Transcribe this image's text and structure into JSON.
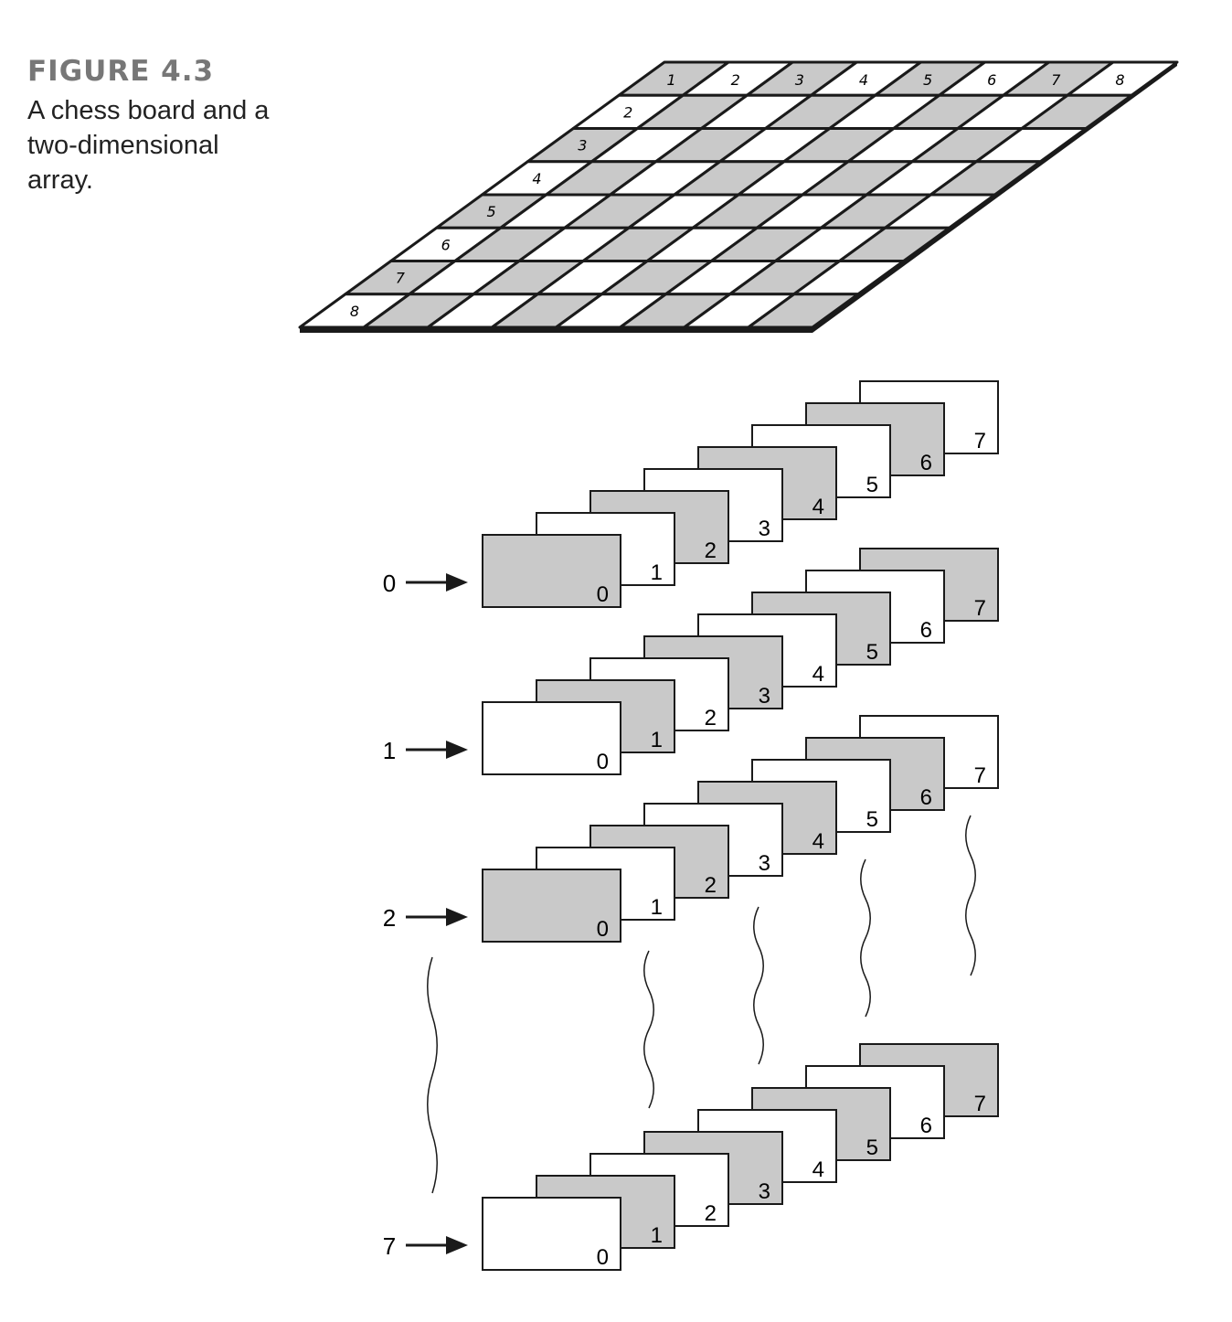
{
  "figure": {
    "label": "FIGURE 4.3",
    "caption": "A chess board and a two-dimensional array."
  },
  "board": {
    "column_labels": [
      "1",
      "2",
      "3",
      "4",
      "5",
      "6",
      "7",
      "8"
    ],
    "row_labels": [
      "2",
      "3",
      "4",
      "5",
      "6",
      "7",
      "8"
    ]
  },
  "array": {
    "row_labels": [
      "0",
      "1",
      "2",
      "7"
    ],
    "card_labels": [
      "0",
      "1",
      "2",
      "3",
      "4",
      "5",
      "6",
      "7"
    ],
    "first_card_shaded": [
      true,
      false,
      true,
      false
    ]
  },
  "colors": {
    "shaded": "#c9c9c9",
    "line": "#1a1a1a",
    "caption_label": "#777777"
  }
}
